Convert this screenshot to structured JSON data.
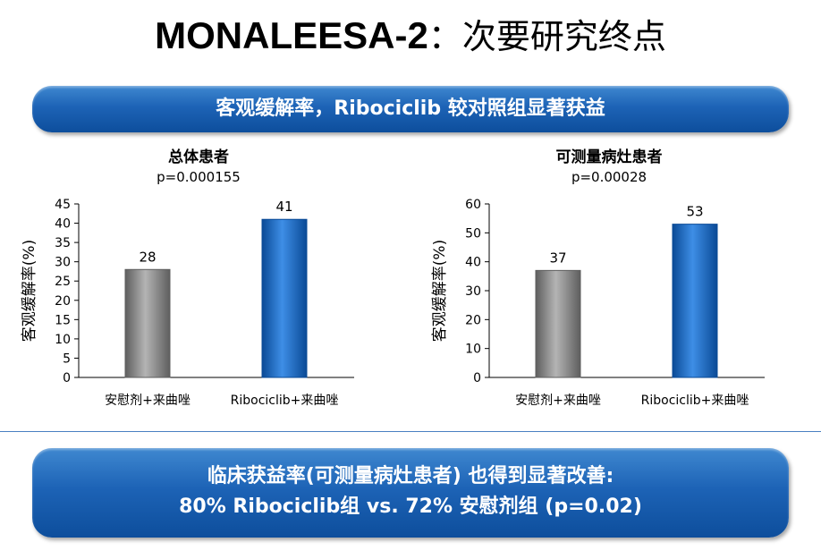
{
  "title": {
    "bold": "MONALEESA-2",
    "light": "：次要研究终点"
  },
  "top_banner": "客观缓解率，Ribociclib 较对照组显著获益",
  "bottom_banner": {
    "line1": "临床获益率(可测量病灶患者) 也得到显著改善:",
    "line2": "80% Ribociclib组 vs. 72% 安慰剂组 (p=0.02)"
  },
  "colors": {
    "placebo": "#8a8a8a",
    "ribociclib": "#1467c8",
    "banner": "#1d63b6"
  },
  "chart_data": [
    {
      "type": "bar",
      "title": "总体患者",
      "subtitle": "p=0.000155",
      "ylabel": "客观缓解率(%)",
      "xlabel": "",
      "categories": [
        "安慰剂+来曲唑",
        "Ribociclib+来曲唑"
      ],
      "values": [
        28,
        41
      ],
      "ylim": [
        0,
        45
      ],
      "yticks": [
        0,
        5,
        10,
        15,
        20,
        25,
        30,
        35,
        40,
        45
      ],
      "grid": false,
      "legend": "none"
    },
    {
      "type": "bar",
      "title": "可测量病灶患者",
      "subtitle": "p=0.00028",
      "ylabel": "客观缓解率(%)",
      "xlabel": "",
      "categories": [
        "安慰剂+来曲唑",
        "Ribociclib+来曲唑"
      ],
      "values": [
        37,
        53
      ],
      "ylim": [
        0,
        60
      ],
      "yticks": [
        0,
        10,
        20,
        30,
        40,
        50,
        60
      ],
      "grid": false,
      "legend": "none"
    }
  ]
}
